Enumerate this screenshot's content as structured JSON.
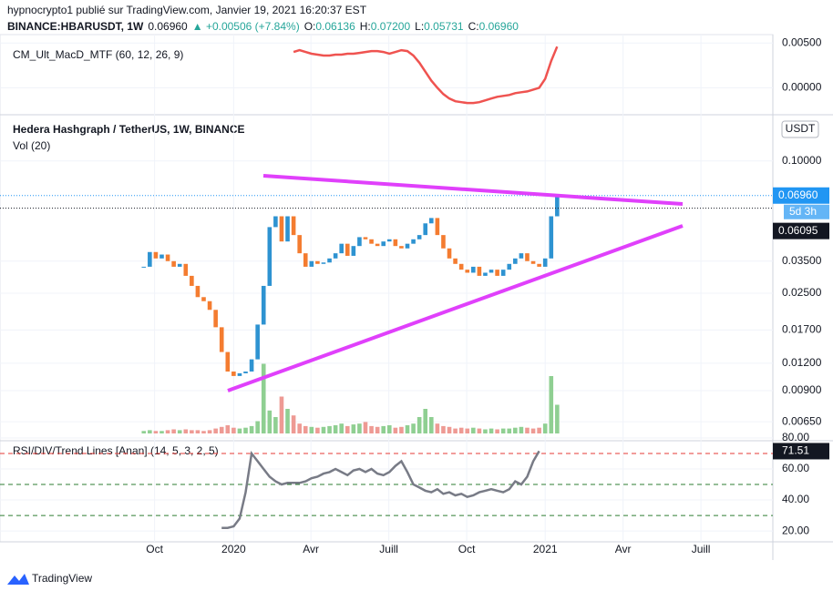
{
  "header": {
    "line1": "hypnocrypto1 publié sur TradingView.com, Janvier 19, 2021 16:20:37 EST",
    "line2": [
      {
        "text": "BINANCE:HBARUSDT, 1W",
        "color": "#131722",
        "bold": true
      },
      {
        "text": "0.06960",
        "color": "#131722"
      },
      {
        "text": "▲ +0.00506 (+7.84%)",
        "color": "#26a69a"
      },
      {
        "text": "O:",
        "color": "#131722"
      },
      {
        "text": "0.06136",
        "color": "#26a69a"
      },
      {
        "text": "H:",
        "color": "#131722"
      },
      {
        "text": "0.07200",
        "color": "#26a69a"
      },
      {
        "text": "L:",
        "color": "#131722"
      },
      {
        "text": "0.05731",
        "color": "#26a69a"
      },
      {
        "text": "C:",
        "color": "#131722"
      },
      {
        "text": "0.06960",
        "color": "#26a69a"
      }
    ]
  },
  "footer": {
    "brand": "TradingView"
  },
  "xlim": [
    -24,
    105
  ],
  "xticks": [
    {
      "value": 1.8,
      "label": "Oct"
    },
    {
      "value": 15,
      "label": "2020"
    },
    {
      "value": 27.9,
      "label": "Avr"
    },
    {
      "value": 40.9,
      "label": "Juill"
    },
    {
      "value": 53.9,
      "label": "Oct"
    },
    {
      "value": 67,
      "label": "2021"
    },
    {
      "value": 80,
      "label": "Avr"
    },
    {
      "value": 93,
      "label": "Juill"
    }
  ],
  "chart_data": [
    {
      "type": "line",
      "title": "CM_Ult_MacD_MTF (60, 12, 26, 9)",
      "ylim": [
        -0.0026,
        0.00594
      ],
      "yticks": [
        {
          "value": 0.005,
          "label": "0.00500"
        },
        {
          "value": 0,
          "label": "0.00000"
        }
      ],
      "series": [
        {
          "color": "#ef5350",
          "values": [
            null,
            null,
            null,
            null,
            null,
            null,
            null,
            null,
            null,
            null,
            null,
            null,
            null,
            null,
            null,
            null,
            null,
            null,
            null,
            null,
            null,
            null,
            null,
            null,
            null,
            0.004,
            0.0042,
            0.004,
            0.0038,
            0.0037,
            0.0036,
            0.0036,
            0.0037,
            0.0037,
            0.0038,
            0.0038,
            0.0039,
            0.004,
            0.0041,
            0.0041,
            0.004,
            0.0038,
            0.004,
            0.0042,
            0.0041,
            0.0036,
            0.0028,
            0.0018,
            0.0008,
            0.0,
            -0.0007,
            -0.0012,
            -0.0015,
            -0.0016,
            -0.0017,
            -0.0017,
            -0.0016,
            -0.0014,
            -0.0012,
            -0.001,
            -0.0009,
            -0.0008,
            -0.0006,
            -0.0005,
            -0.0004,
            -0.0002,
            0.0,
            0.001,
            0.003,
            0.0046
          ]
        }
      ]
    },
    {
      "type": "candlestick",
      "title": "Hedera Hashgraph / TetherUS, 1W, BINANCE",
      "subtitle": "Vol (20)",
      "log_scale": true,
      "ylim": [
        0.00564,
        0.149
      ],
      "yticks": [
        {
          "value": 0.1,
          "label": "0.10000"
        },
        {
          "value": 0.035,
          "label": "0.03500"
        },
        {
          "value": 0.025,
          "label": "0.02500"
        },
        {
          "value": 0.017,
          "label": "0.01700"
        },
        {
          "value": 0.012,
          "label": "0.01200"
        },
        {
          "value": 0.009,
          "label": "0.00900"
        },
        {
          "value": 0.0065,
          "label": "0.00650"
        }
      ],
      "currency": "USDT",
      "up_color": "#2e93d1",
      "down_color": "#f47c30",
      "closes": [
        0.033,
        0.0385,
        0.036,
        0.0375,
        0.035,
        0.033,
        0.034,
        0.03,
        0.027,
        0.024,
        0.023,
        0.021,
        0.0175,
        0.0135,
        0.011,
        0.0105,
        0.0108,
        0.011,
        0.0125,
        0.018,
        0.027,
        0.05,
        0.056,
        0.043,
        0.056,
        0.046,
        0.038,
        0.033,
        0.035,
        0.034,
        0.0345,
        0.036,
        0.038,
        0.042,
        0.037,
        0.041,
        0.045,
        0.044,
        0.042,
        0.041,
        0.043,
        0.044,
        0.041,
        0.04,
        0.042,
        0.044,
        0.046,
        0.052,
        0.055,
        0.046,
        0.04,
        0.036,
        0.034,
        0.032,
        0.031,
        0.033,
        0.03,
        0.031,
        0.032,
        0.03,
        0.032,
        0.034,
        0.036,
        0.038,
        0.035,
        0.034,
        0.033,
        0.036,
        0.056,
        0.0696
      ],
      "volume_up_color": "#8fcf92",
      "volume_down_color": "#ee9a94",
      "volumes": [
        3,
        4,
        3,
        3,
        4,
        5,
        4,
        5,
        4,
        4,
        3,
        4,
        6,
        8,
        10,
        7,
        6,
        7,
        9,
        15,
        85,
        28,
        20,
        45,
        30,
        22,
        12,
        9,
        8,
        7,
        8,
        9,
        10,
        12,
        9,
        11,
        12,
        14,
        9,
        8,
        9,
        10,
        7,
        8,
        10,
        12,
        20,
        30,
        20,
        12,
        9,
        8,
        6,
        7,
        6,
        7,
        6,
        5,
        6,
        5,
        6,
        6,
        7,
        8,
        7,
        6,
        7,
        12,
        70,
        35
      ],
      "price_tags": [
        {
          "value": 0.0696,
          "label": "0.06960",
          "color": "#2196f3",
          "extra": "5d 3h"
        },
        {
          "value": 0.06095,
          "label": "0.06095",
          "color": "#131722"
        }
      ]
    },
    {
      "type": "line",
      "title": "RSI/DIV/Trend Lines [Anan] (14, 5, 3, 2, 5)",
      "ylim": [
        13,
        75.3
      ],
      "yticks": [
        {
          "value": 80,
          "label": "80.00"
        },
        {
          "value": 60,
          "label": "60.00"
        },
        {
          "value": 40,
          "label": "40.00"
        },
        {
          "value": 20,
          "label": "20.00"
        }
      ],
      "hlines": [
        {
          "value": 70,
          "color": "#e53935"
        },
        {
          "value": 50,
          "color": "#2e7d32"
        },
        {
          "value": 30,
          "color": "#2e7d32"
        }
      ],
      "series": [
        {
          "color": "#787b86",
          "values": [
            null,
            null,
            null,
            null,
            null,
            null,
            null,
            null,
            null,
            null,
            null,
            null,
            null,
            22,
            22,
            23,
            28,
            45,
            70,
            65,
            60,
            55,
            52,
            50,
            51,
            51,
            51,
            52,
            54,
            55,
            57,
            58,
            60,
            58,
            56,
            59,
            60,
            58,
            60,
            57,
            56,
            58,
            62,
            65,
            58,
            50,
            48,
            46,
            45,
            47,
            44,
            45,
            43,
            44,
            42,
            43,
            45,
            46,
            47,
            46,
            45,
            47,
            52,
            50,
            55,
            65,
            71.51
          ]
        }
      ],
      "value_tag": {
        "value": 71.51,
        "label": "71.51"
      }
    }
  ]
}
